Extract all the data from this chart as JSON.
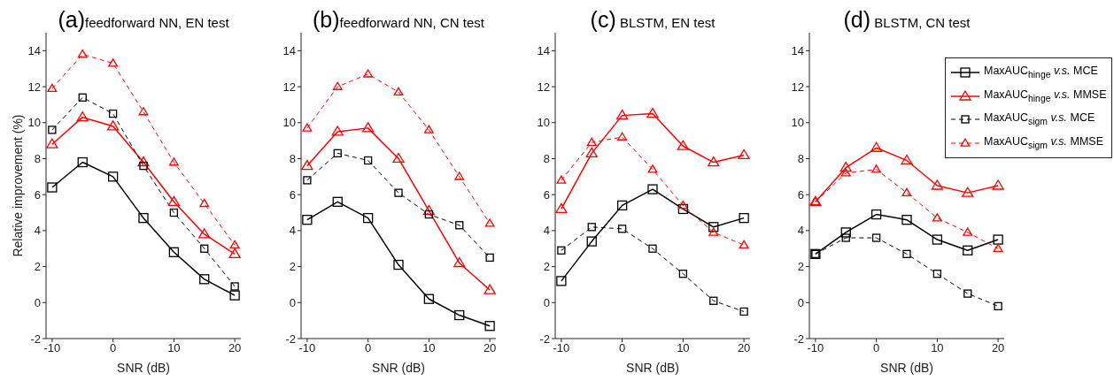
{
  "chart_data": [
    {
      "type": "line",
      "title": "(a)feedforward NN, EN test",
      "xlabel": "SNR (dB)",
      "ylabel": "Relative improvement (%)",
      "x": [
        -10,
        -5,
        0,
        5,
        10,
        15,
        20
      ],
      "xlim": [
        -11,
        21
      ],
      "xticks": [
        -10,
        0,
        10,
        20
      ],
      "ylim": [
        -2,
        15
      ],
      "yticks": [
        -2,
        0,
        2,
        4,
        6,
        8,
        10,
        12,
        14
      ],
      "grid": false,
      "legend": false,
      "series": [
        {
          "color": "#000000",
          "marker": "square",
          "line_style": "solid",
          "values": [
            6.4,
            7.8,
            7.0,
            4.7,
            2.8,
            1.3,
            0.4
          ]
        },
        {
          "color": "#ff0000",
          "marker": "triangle",
          "line_style": "solid",
          "values": [
            8.8,
            10.3,
            9.8,
            7.8,
            5.6,
            3.8,
            2.7
          ]
        },
        {
          "color": "#000000",
          "marker": "square",
          "line_style": "dashed",
          "values": [
            9.6,
            11.4,
            10.5,
            7.6,
            5.0,
            3.0,
            0.9
          ]
        },
        {
          "color": "#ff0000",
          "marker": "triangle",
          "line_style": "dashed",
          "values": [
            11.9,
            13.8,
            13.3,
            10.6,
            7.8,
            5.5,
            3.2
          ]
        }
      ]
    },
    {
      "type": "line",
      "title": "(b)feedforward NN, CN test",
      "xlabel": "SNR (dB)",
      "x": [
        -10,
        -5,
        0,
        5,
        10,
        15,
        20
      ],
      "xlim": [
        -11,
        21
      ],
      "xticks": [
        -10,
        0,
        10,
        20
      ],
      "ylim": [
        -2,
        15
      ],
      "yticks": [
        -2,
        0,
        2,
        4,
        6,
        8,
        10,
        12,
        14
      ],
      "grid": false,
      "legend": false,
      "series": [
        {
          "color": "#000000",
          "marker": "square",
          "line_style": "solid",
          "values": [
            4.6,
            5.6,
            4.7,
            2.1,
            0.2,
            -0.7,
            -1.3
          ]
        },
        {
          "color": "#ff0000",
          "marker": "triangle",
          "line_style": "solid",
          "values": [
            7.6,
            9.5,
            9.7,
            8.0,
            5.1,
            2.2,
            0.7
          ]
        },
        {
          "color": "#000000",
          "marker": "square",
          "line_style": "dashed",
          "values": [
            6.8,
            8.3,
            7.9,
            6.1,
            4.9,
            4.3,
            2.5
          ]
        },
        {
          "color": "#ff0000",
          "marker": "triangle",
          "line_style": "dashed",
          "values": [
            9.7,
            12.0,
            12.7,
            11.7,
            9.6,
            7.0,
            4.4
          ]
        }
      ]
    },
    {
      "type": "line",
      "title": "(c) BLSTM, EN test",
      "xlabel": "SNR (dB)",
      "x": [
        -10,
        -5,
        0,
        5,
        10,
        15,
        20
      ],
      "xlim": [
        -11,
        21
      ],
      "xticks": [
        -10,
        0,
        10,
        20
      ],
      "ylim": [
        -2,
        15
      ],
      "yticks": [
        -2,
        0,
        2,
        4,
        6,
        8,
        10,
        12,
        14
      ],
      "grid": false,
      "legend": false,
      "series": [
        {
          "color": "#000000",
          "marker": "square",
          "line_style": "solid",
          "values": [
            1.2,
            3.4,
            5.4,
            6.3,
            5.2,
            4.2,
            4.7
          ]
        },
        {
          "color": "#ff0000",
          "marker": "triangle",
          "line_style": "solid",
          "values": [
            5.2,
            8.3,
            10.4,
            10.5,
            8.7,
            7.8,
            8.2
          ]
        },
        {
          "color": "#000000",
          "marker": "square",
          "line_style": "dashed",
          "values": [
            2.9,
            4.2,
            4.1,
            3.0,
            1.6,
            0.1,
            -0.5
          ]
        },
        {
          "color": "#ff0000",
          "marker": "triangle",
          "line_style": "dashed",
          "values": [
            6.8,
            8.9,
            9.2,
            7.4,
            5.4,
            3.9,
            3.2
          ]
        }
      ]
    },
    {
      "type": "line",
      "title": "(d) BLSTM, CN test",
      "xlabel": "SNR (dB)",
      "x": [
        -10,
        -5,
        0,
        5,
        10,
        15,
        20
      ],
      "xlim": [
        -11,
        21
      ],
      "xticks": [
        -10,
        0,
        10,
        20
      ],
      "ylim": [
        -2,
        15
      ],
      "yticks": [
        -2,
        0,
        2,
        4,
        6,
        8,
        10,
        12,
        14
      ],
      "grid": false,
      "legend": "top right",
      "series": [
        {
          "name": "MaxAUC$_{hinge}$ v.s. MCE",
          "color": "#000000",
          "marker": "square",
          "line_style": "solid",
          "values": [
            2.7,
            3.9,
            4.9,
            4.6,
            3.5,
            2.9,
            3.5
          ]
        },
        {
          "name": "MaxAUC$_{hinge}$ v.s. MMSE",
          "color": "#ff0000",
          "marker": "triangle",
          "line_style": "solid",
          "values": [
            5.6,
            7.5,
            8.6,
            7.9,
            6.5,
            6.1,
            6.5
          ]
        },
        {
          "name": "MaxAUC$_{sigm}$ v.s. MCE",
          "color": "#000000",
          "marker": "square",
          "line_style": "dashed",
          "values": [
            2.7,
            3.6,
            3.6,
            2.7,
            1.6,
            0.5,
            -0.2
          ]
        },
        {
          "name": "MaxAUC$_{sigm}$ v.s. MMSE",
          "color": "#ff0000",
          "marker": "triangle",
          "line_style": "dashed",
          "values": [
            5.6,
            7.2,
            7.4,
            6.1,
            4.7,
            3.9,
            3.0
          ]
        }
      ]
    }
  ]
}
